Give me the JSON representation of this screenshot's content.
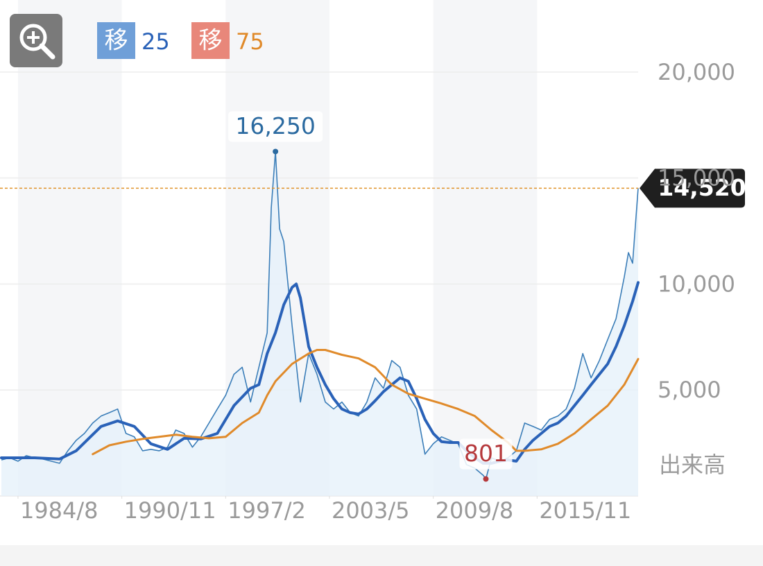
{
  "chart_data": {
    "type": "line",
    "xlim": [
      "1983/7",
      "2021/12"
    ],
    "xticks": [
      "1984/8",
      "1990/11",
      "1997/2",
      "2003/5",
      "2009/8",
      "2015/11"
    ],
    "ylim": [
      0,
      23400
    ],
    "yticks": [
      {
        "value": 5000,
        "label": "5,000"
      },
      {
        "value": 10000,
        "label": "10,000"
      },
      {
        "value": 15000,
        "label": "15,000"
      },
      {
        "value": 20000,
        "label": "20,000"
      }
    ],
    "grid": true,
    "volume_label": "出来高",
    "price": {
      "color": "#3a7db8",
      "x": [
        "1983/8",
        "1984/2",
        "1984/8",
        "1985/2",
        "1985/8",
        "1986/2",
        "1986/8",
        "1987/2",
        "1987/8",
        "1988/2",
        "1988/8",
        "1989/2",
        "1989/8",
        "1990/2",
        "1990/8",
        "1991/2",
        "1991/8",
        "1992/2",
        "1992/8",
        "1993/2",
        "1993/8",
        "1994/2",
        "1994/8",
        "1995/2",
        "1995/8",
        "1996/2",
        "1996/8",
        "1997/2",
        "1997/8",
        "1998/2",
        "1998/8",
        "1999/2",
        "1999/8",
        "1999/11",
        "2000/2",
        "2000/5",
        "2000/8",
        "2001/2",
        "2001/8",
        "2002/2",
        "2002/8",
        "2003/2",
        "2003/8",
        "2004/2",
        "2004/8",
        "2005/2",
        "2005/8",
        "2006/2",
        "2006/8",
        "2007/2",
        "2007/8",
        "2008/2",
        "2008/8",
        "2009/2",
        "2009/8",
        "2010/2",
        "2010/8",
        "2011/2",
        "2011/8",
        "2012/2",
        "2012/8",
        "2012/10",
        "2013/2",
        "2013/8",
        "2014/2",
        "2014/8",
        "2015/2",
        "2015/8",
        "2016/2",
        "2016/8",
        "2017/2",
        "2017/8",
        "2018/2",
        "2018/8",
        "2019/2",
        "2019/8",
        "2020/2",
        "2020/8",
        "2021/2",
        "2021/5",
        "2021/8",
        "2021/12"
      ],
      "values": [
        1700,
        1800,
        1640,
        1900,
        1800,
        1740,
        1640,
        1540,
        2130,
        2620,
        2950,
        3440,
        3770,
        3930,
        4100,
        2950,
        2790,
        2130,
        2200,
        2130,
        2300,
        3110,
        2950,
        2300,
        2790,
        3440,
        4100,
        4750,
        5740,
        6070,
        4430,
        6070,
        7700,
        13600,
        16250,
        12600,
        12000,
        8030,
        4430,
        6720,
        5740,
        4430,
        4100,
        4430,
        3930,
        3770,
        4430,
        5570,
        5080,
        6390,
        6070,
        4750,
        4100,
        1970,
        2460,
        2790,
        2620,
        2460,
        1480,
        1310,
        980,
        801,
        1800,
        1640,
        1800,
        2130,
        3440,
        3280,
        3110,
        3610,
        3770,
        4100,
        5080,
        6720,
        5570,
        6390,
        7380,
        8360,
        10330,
        11480,
        10980,
        14520
      ]
    },
    "series": [
      {
        "name": "25",
        "badge": "移",
        "color": "#2a62b8",
        "badge_color": "#6f9fd8",
        "x": [
          "1983/8",
          "1985/8",
          "1987/2",
          "1988/2",
          "1989/8",
          "1990/8",
          "1991/8",
          "1992/8",
          "1993/8",
          "1994/8",
          "1995/8",
          "1996/8",
          "1997/8",
          "1998/8",
          "1999/2",
          "1999/8",
          "2000/2",
          "2000/8",
          "2001/2",
          "2001/5",
          "2001/8",
          "2002/2",
          "2002/8",
          "2003/2",
          "2003/8",
          "2004/2",
          "2004/8",
          "2005/2",
          "2005/8",
          "2006/2",
          "2006/8",
          "2007/2",
          "2007/8",
          "2008/2",
          "2008/8",
          "2009/2",
          "2009/8",
          "2010/2",
          "2010/8",
          "2011/2",
          "2011/8",
          "2012/2",
          "2012/8",
          "2013/2",
          "2013/8",
          "2014/2",
          "2014/8",
          "2015/2",
          "2015/8",
          "2016/2",
          "2016/8",
          "2017/2",
          "2017/8",
          "2018/2",
          "2018/8",
          "2019/2",
          "2019/8",
          "2020/2",
          "2020/8",
          "2021/2",
          "2021/8",
          "2021/12"
        ],
        "values": [
          1800,
          1800,
          1740,
          2130,
          3280,
          3540,
          3280,
          2460,
          2200,
          2720,
          2690,
          2950,
          4260,
          5080,
          5250,
          6720,
          7700,
          9020,
          9840,
          10000,
          9340,
          7050,
          6070,
          5250,
          4590,
          4100,
          3930,
          3870,
          4100,
          4490,
          4920,
          5250,
          5570,
          5410,
          4590,
          3610,
          2950,
          2560,
          2520,
          2520,
          2130,
          1800,
          1540,
          1540,
          1640,
          1700,
          1640,
          2200,
          2620,
          2950,
          3280,
          3440,
          3770,
          4260,
          4750,
          5250,
          5740,
          6230,
          7050,
          8030,
          9180,
          10070
        ]
      },
      {
        "name": "75",
        "badge": "移",
        "color": "#e08a2a",
        "badge_color": "#e8877a",
        "x": [
          "1989/2",
          "1990/2",
          "1991/2",
          "1992/2",
          "1993/2",
          "1994/2",
          "1995/2",
          "1996/2",
          "1997/2",
          "1998/2",
          "1999/2",
          "1999/8",
          "2000/2",
          "2001/2",
          "2002/2",
          "2002/8",
          "2003/2",
          "2004/2",
          "2005/2",
          "2006/2",
          "2007/2",
          "2008/2",
          "2009/2",
          "2010/2",
          "2011/2",
          "2012/2",
          "2013/2",
          "2014/2",
          "2014/8",
          "2015/2",
          "2016/2",
          "2017/2",
          "2018/2",
          "2019/2",
          "2020/2",
          "2021/2",
          "2021/12"
        ],
        "values": [
          1970,
          2390,
          2560,
          2690,
          2790,
          2890,
          2790,
          2720,
          2790,
          3440,
          3930,
          4750,
          5410,
          6230,
          6720,
          6890,
          6890,
          6660,
          6490,
          6070,
          5250,
          4820,
          4590,
          4360,
          4100,
          3770,
          3110,
          2520,
          2130,
          2130,
          2200,
          2460,
          2950,
          3610,
          4260,
          5250,
          6460
        ]
      }
    ],
    "annotations": [
      {
        "x": "2000/2",
        "value": 16250,
        "label": "16,250",
        "color": "#2b6aa0"
      },
      {
        "x": "2012/10",
        "value": 801,
        "label": "801",
        "color": "#b5383b"
      }
    ],
    "last": {
      "value": 14520,
      "label": "14,520",
      "color": "#e0922a"
    }
  }
}
